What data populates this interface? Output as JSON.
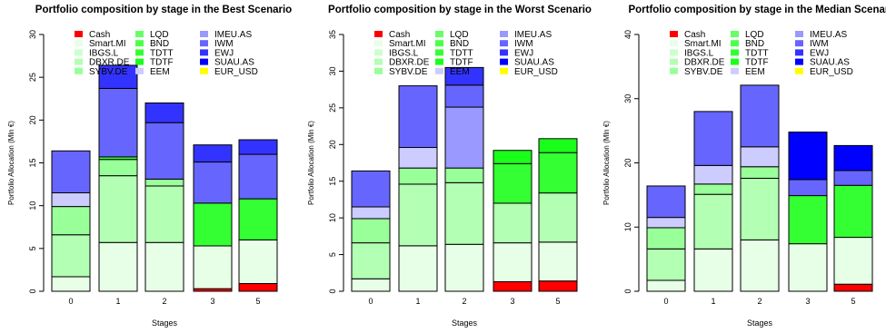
{
  "legend_labels": [
    "Cash",
    "Smart.MI",
    "IBGS.L",
    "DBXR.DE",
    "SYBV.DE",
    "LQD",
    "BND",
    "TDTT",
    "TDTF",
    "EEM",
    "IMEU.AS",
    "IWM",
    "EWJ",
    "SUAU.AS",
    "EUR_USD"
  ],
  "colors": {
    "Cash": "#ff0000",
    "Smart.MI": "#e6ffe6",
    "IBGS.L": "#ccffcc",
    "DBXR.DE": "#b3ffb3",
    "SYBV.DE": "#99ff99",
    "LQD": "#66ff66",
    "BND": "#4dff4d",
    "TDTT": "#33ff33",
    "TDTF": "#1aff1a",
    "EEM": "#ccccff",
    "IMEU.AS": "#9999ff",
    "IWM": "#6666ff",
    "EWJ": "#3333ff",
    "SUAU.AS": "#0000ff",
    "EUR_USD": "#ffff00"
  },
  "chart_data": [
    {
      "type": "bar",
      "stacked": true,
      "title": "Portfolio composition by stage in the Best Scenario",
      "xlabel": "Stages",
      "ylabel": "Portfolio Allocation (Mln €)",
      "categories": [
        "0",
        "1",
        "2",
        "3",
        "5"
      ],
      "ylim": [
        0,
        30
      ],
      "yticks": [
        0,
        5,
        10,
        15,
        20,
        25,
        30
      ],
      "series": [
        {
          "name": "Cash",
          "values": [
            0,
            0,
            0,
            0.3,
            0.9
          ]
        },
        {
          "name": "Smart.MI",
          "values": [
            1.7,
            5.7,
            5.7,
            5.0,
            5.1
          ]
        },
        {
          "name": "DBXR.DE",
          "values": [
            4.9,
            7.8,
            6.6,
            0,
            0
          ]
        },
        {
          "name": "SYBV.DE",
          "values": [
            3.3,
            1.9,
            0.8,
            0,
            0
          ]
        },
        {
          "name": "TDTT",
          "values": [
            0,
            0.3,
            0,
            5.0,
            4.8
          ]
        },
        {
          "name": "EEM",
          "values": [
            1.6,
            0,
            0,
            0,
            0
          ]
        },
        {
          "name": "IWM",
          "values": [
            4.9,
            8.0,
            6.6,
            4.8,
            5.2
          ]
        },
        {
          "name": "EWJ",
          "values": [
            0,
            2.7,
            2.3,
            2.0,
            1.7
          ]
        }
      ]
    },
    {
      "type": "bar",
      "stacked": true,
      "title": "Portfolio composition by stage in the Worst Scenario",
      "xlabel": "Stages",
      "ylabel": "Portfolio Allocation (Mln €)",
      "categories": [
        "0",
        "1",
        "2",
        "3",
        "5"
      ],
      "ylim": [
        0,
        35
      ],
      "yticks": [
        0,
        5,
        10,
        15,
        20,
        25,
        30,
        35
      ],
      "series": [
        {
          "name": "Cash",
          "values": [
            0,
            0,
            0,
            1.3,
            1.4
          ]
        },
        {
          "name": "Smart.MI",
          "values": [
            1.7,
            6.2,
            6.4,
            5.3,
            5.3
          ]
        },
        {
          "name": "DBXR.DE",
          "values": [
            4.9,
            8.4,
            8.4,
            5.4,
            6.7
          ]
        },
        {
          "name": "SYBV.DE",
          "values": [
            3.3,
            2.2,
            2.0,
            0,
            0
          ]
        },
        {
          "name": "TDTT",
          "values": [
            0,
            0,
            0,
            5.4,
            5.5
          ]
        },
        {
          "name": "TDTF",
          "values": [
            0,
            0,
            0,
            1.8,
            1.9
          ]
        },
        {
          "name": "EEM",
          "values": [
            1.6,
            2.8,
            0,
            0,
            0
          ]
        },
        {
          "name": "IMEU.AS",
          "values": [
            0,
            0,
            8.3,
            0,
            0
          ]
        },
        {
          "name": "IWM",
          "values": [
            4.9,
            8.4,
            3.0,
            0,
            0
          ]
        },
        {
          "name": "EWJ",
          "values": [
            0,
            0,
            2.4,
            0,
            0
          ]
        }
      ]
    },
    {
      "type": "bar",
      "stacked": true,
      "title": "Portfolio composition by stage in the Median Scenario",
      "xlabel": "Stages",
      "ylabel": "Portfolio Allocation (Mln €)",
      "categories": [
        "0",
        "1",
        "2",
        "3",
        "5"
      ],
      "ylim": [
        0,
        40
      ],
      "yticks": [
        0,
        10,
        20,
        30,
        40
      ],
      "series": [
        {
          "name": "Cash",
          "values": [
            0,
            0,
            0,
            0,
            1.1
          ]
        },
        {
          "name": "Smart.MI",
          "values": [
            1.7,
            6.6,
            8.0,
            7.4,
            7.3
          ]
        },
        {
          "name": "DBXR.DE",
          "values": [
            4.9,
            8.5,
            9.6,
            0,
            0
          ]
        },
        {
          "name": "SYBV.DE",
          "values": [
            3.3,
            1.6,
            1.8,
            0,
            0
          ]
        },
        {
          "name": "TDTT",
          "values": [
            0,
            0,
            0,
            7.5,
            8.1
          ]
        },
        {
          "name": "EEM",
          "values": [
            1.6,
            2.9,
            3.1,
            0,
            0
          ]
        },
        {
          "name": "IWM",
          "values": [
            4.9,
            8.4,
            9.6,
            2.5,
            2.3
          ]
        },
        {
          "name": "SUAU.AS",
          "values": [
            0,
            0,
            0,
            7.4,
            3.9
          ]
        }
      ]
    }
  ]
}
